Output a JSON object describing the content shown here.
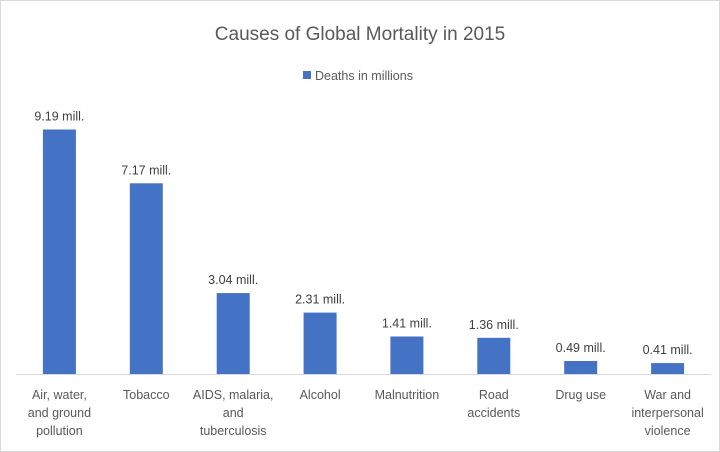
{
  "chart_data": {
    "type": "bar",
    "title": "Causes of Global Mortality in 2015",
    "xlabel": "",
    "ylabel": "",
    "legend_position": "top",
    "grid": false,
    "ylim": [
      0,
      10
    ],
    "bar_color": "#4472C4",
    "series": [
      {
        "name": "Deaths in millions",
        "values": [
          9.19,
          7.17,
          3.04,
          2.31,
          1.41,
          1.36,
          0.49,
          0.41
        ]
      }
    ],
    "categories": [
      [
        "Air, water,",
        "and ground",
        "pollution"
      ],
      [
        "Tobacco"
      ],
      [
        "AIDS, malaria,",
        "and",
        "tuberculosis"
      ],
      [
        "Alcohol"
      ],
      [
        "Malnutrition"
      ],
      [
        "Road",
        "accidents"
      ],
      [
        "Drug use"
      ],
      [
        "War and",
        "interpersonal",
        "violence"
      ]
    ],
    "data_labels": [
      "9.19 mill.",
      "7.17 mill.",
      "3.04 mill.",
      "2.31 mill.",
      "1.41 mill.",
      "1.36 mill.",
      "0.49 mill.",
      "0.41 mill."
    ]
  }
}
